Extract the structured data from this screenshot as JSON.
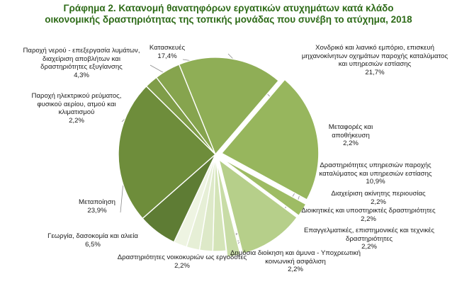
{
  "chart_data": {
    "type": "pie",
    "title_line1": "Γράφημα 2. Κατανομή θανατηφόρων εργατικών ατυχημάτων  κατά κλάδο",
    "title_line2": "οικονομικής δραστηριότητας της τοπικής μονάδας που συνέβη το ατύχημα, 2018",
    "slices": [
      {
        "label": "Κατασκευές",
        "value": 17.4,
        "value_label": "17,4%",
        "color": "#8fae56",
        "exploded": false
      },
      {
        "label": "Χονδρικό και λιανικό εμπόριο, επισκευή μηχανοκίνητων οχημάτων παροχής καταλύματος και υπηρεσιών εστίασης",
        "value": 21.7,
        "value_label": "21,7%",
        "color": "#97b65d",
        "exploded": true
      },
      {
        "label": "Μεταφορές και αποθήκευση",
        "value": 2.2,
        "value_label": "2,2%",
        "color": "#9ebc64",
        "exploded": true
      },
      {
        "label": "Δραστηριότητες υπηρεσιών παροχής καταλύματος και υπηρεσιών εστίασης",
        "value": 10.9,
        "value_label": "10,9%",
        "color": "#b6cf8a",
        "exploded": true
      },
      {
        "label": "Διαχείριση ακίνητης περιουσίας",
        "value": 2.2,
        "value_label": "2,2%",
        "color": "#c8dca6",
        "exploded": true
      },
      {
        "label": "Διοικητικές και υποστηρικτές δραστηριότητες",
        "value": 2.2,
        "value_label": "2,2%",
        "color": "#d4e4b8",
        "exploded": false
      },
      {
        "label": "Επαγγελματικές, επιστημονικές και τεχνικές δραστηριότητες",
        "value": 2.2,
        "value_label": "2,2%",
        "color": "#dde9c8",
        "exploded": false
      },
      {
        "label": "Δημόσια διοίκηση και άμυνα - Υποχρεωτική κοινωνική ασφάλιση",
        "value": 2.2,
        "value_label": "2,2%",
        "color": "#e6efd6",
        "exploded": false
      },
      {
        "label": "Δραστηριότητες νοικοκυριών ως εργοδότες",
        "value": 2.2,
        "value_label": "2,2%",
        "color": "#eef4e2",
        "exploded": false
      },
      {
        "label": "Γεωργία, δασοκομία και αλιεία",
        "value": 6.5,
        "value_label": "6,5%",
        "color": "#5e7c34",
        "exploded": false
      },
      {
        "label": "Μεταποίηση",
        "value": 23.9,
        "value_label": "23,9%",
        "color": "#6e8d3b",
        "exploded": false
      },
      {
        "label": "Παροχή ηλεκτρικού ρεύματος, φυσικού αερίου, ατμού και κλιματισμού",
        "value": 2.2,
        "value_label": "2,2%",
        "color": "#7f9d48",
        "exploded": false
      },
      {
        "label": "Παροχή νερού - επεξεργασία λυμάτων, διαχείριση αποβλήτων και δραστηριότητες εξυγίανσης",
        "value": 4.3,
        "value_label": "4,3%",
        "color": "#86a44e",
        "exploded": false
      }
    ]
  }
}
